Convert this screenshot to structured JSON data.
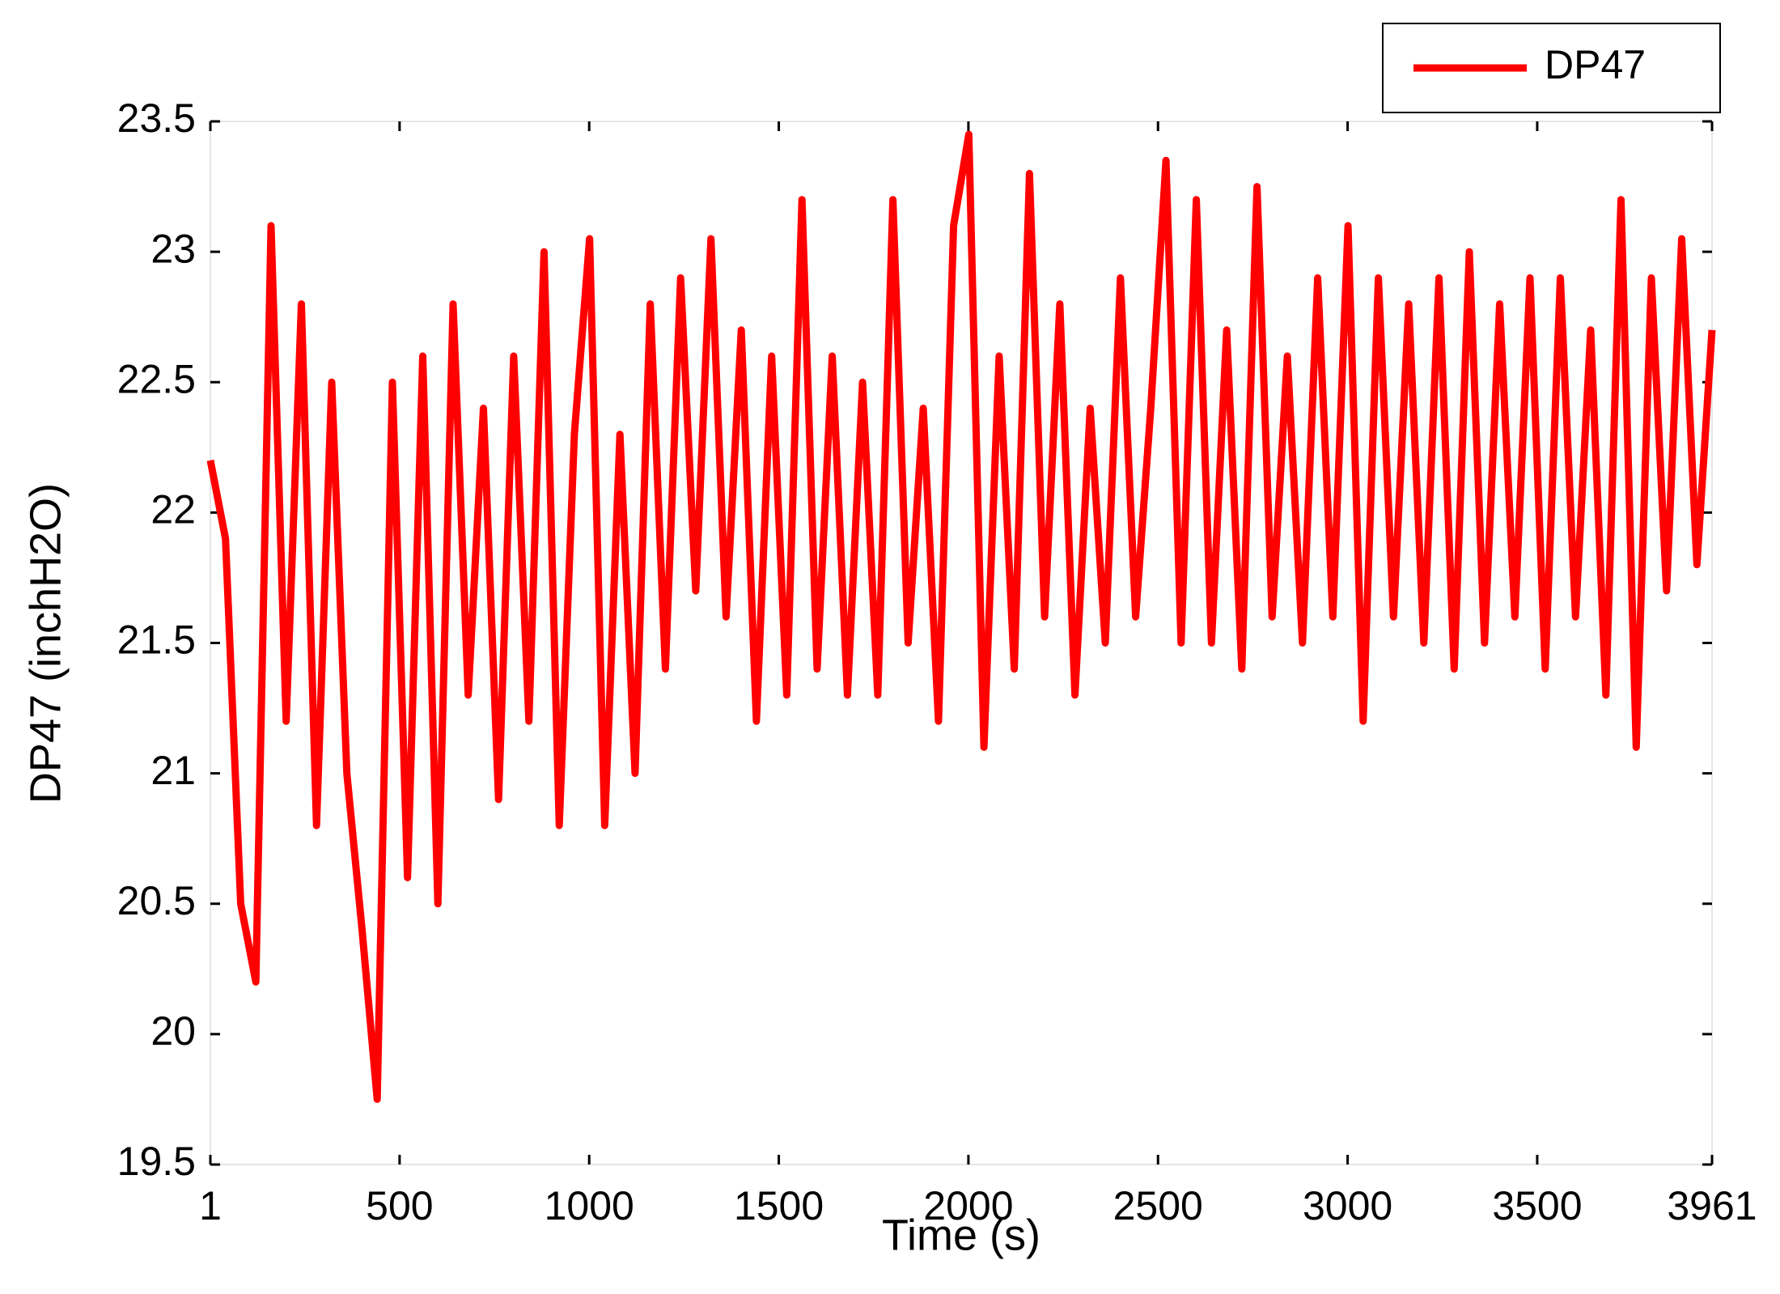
{
  "chart_data": {
    "type": "line",
    "xlabel": "Time (s)",
    "ylabel": "DP47 (inchH2O)",
    "xlim": [
      1,
      3961
    ],
    "ylim": [
      19.5,
      23.5
    ],
    "xticks": [
      1,
      500,
      1000,
      1500,
      2000,
      2500,
      3000,
      3500,
      3961
    ],
    "yticks": [
      19.5,
      20,
      20.5,
      21,
      21.5,
      22,
      22.5,
      23,
      23.5
    ],
    "legend": "northeast",
    "x": [
      1,
      41,
      81,
      121,
      161,
      201,
      241,
      281,
      321,
      361,
      401,
      441,
      481,
      521,
      561,
      601,
      641,
      681,
      721,
      761,
      801,
      841,
      881,
      921,
      961,
      1001,
      1041,
      1081,
      1121,
      1161,
      1201,
      1241,
      1281,
      1321,
      1361,
      1401,
      1441,
      1481,
      1521,
      1561,
      1601,
      1641,
      1681,
      1721,
      1761,
      1801,
      1841,
      1881,
      1921,
      1961,
      2001,
      2041,
      2081,
      2121,
      2161,
      2201,
      2241,
      2281,
      2321,
      2361,
      2401,
      2441,
      2481,
      2521,
      2561,
      2601,
      2641,
      2681,
      2721,
      2761,
      2801,
      2841,
      2881,
      2921,
      2961,
      3001,
      3041,
      3081,
      3121,
      3161,
      3201,
      3241,
      3281,
      3321,
      3361,
      3401,
      3441,
      3481,
      3521,
      3561,
      3601,
      3641,
      3681,
      3721,
      3761,
      3801,
      3841,
      3881,
      3921,
      3961
    ],
    "series": [
      {
        "name": "DP47",
        "color": "#ff0000",
        "values": [
          22.2,
          21.9,
          20.5,
          20.2,
          23.1,
          21.2,
          22.8,
          20.8,
          22.5,
          21.0,
          20.4,
          19.75,
          22.5,
          20.6,
          22.6,
          20.5,
          22.8,
          21.3,
          22.4,
          20.9,
          22.6,
          21.2,
          23.0,
          20.8,
          22.3,
          23.05,
          20.8,
          22.3,
          21.0,
          22.8,
          21.4,
          22.9,
          21.7,
          23.05,
          21.6,
          22.7,
          21.2,
          22.6,
          21.3,
          23.2,
          21.4,
          22.6,
          21.3,
          22.5,
          21.3,
          23.2,
          21.5,
          22.4,
          21.2,
          23.1,
          23.45,
          21.1,
          22.6,
          21.4,
          23.3,
          21.6,
          22.8,
          21.3,
          22.4,
          21.5,
          22.9,
          21.6,
          22.4,
          23.35,
          21.5,
          23.2,
          21.5,
          22.7,
          21.4,
          23.25,
          21.6,
          22.6,
          21.5,
          22.9,
          21.6,
          23.1,
          21.2,
          22.9,
          21.6,
          22.8,
          21.5,
          22.9,
          21.4,
          23.0,
          21.5,
          22.8,
          21.6,
          22.9,
          21.4,
          22.9,
          21.6,
          22.7,
          21.3,
          23.2,
          21.1,
          22.9,
          21.7,
          23.05,
          21.8,
          22.7
        ]
      }
    ]
  }
}
